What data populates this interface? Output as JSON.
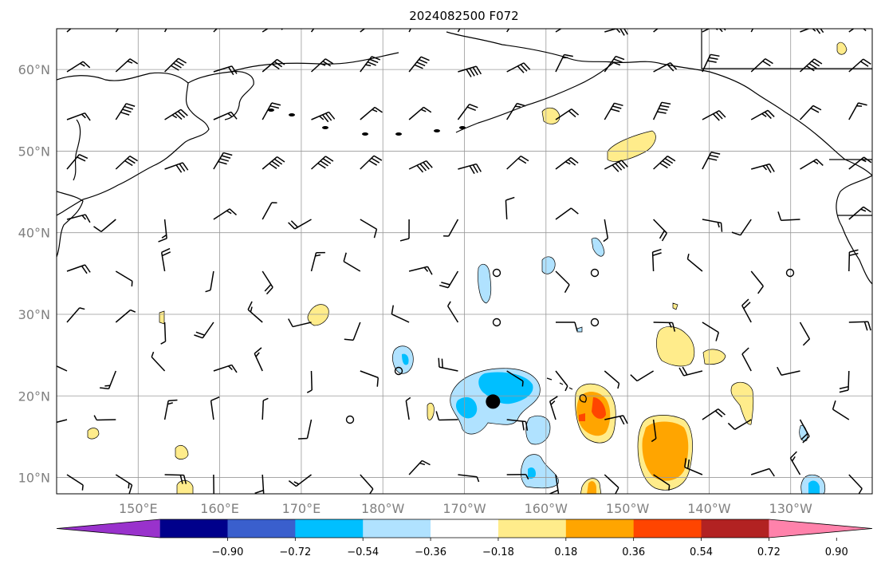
{
  "title": "2024082500 F072",
  "map": {
    "lat_labels": [
      "60°N",
      "50°N",
      "40°N",
      "30°N",
      "20°N",
      "10°N"
    ],
    "lat_values": [
      60,
      50,
      40,
      30,
      20,
      10
    ],
    "lon_labels": [
      "150°E",
      "160°E",
      "170°E",
      "180°W",
      "170°W",
      "160°W",
      "150°W",
      "140°W",
      "130°W"
    ],
    "lon_values": [
      150,
      160,
      170,
      180,
      190,
      200,
      210,
      220,
      230
    ],
    "lon_range_east": [
      140,
      240
    ],
    "lat_range": [
      8,
      65
    ],
    "grid": true,
    "marker": {
      "lon": 193.5,
      "lat": 19.3
    }
  },
  "colorbar": {
    "tick_labels": [
      "−0.90",
      "−0.72",
      "−0.54",
      "−0.36",
      "−0.18",
      "0.18",
      "0.36",
      "0.54",
      "0.72",
      "0.90"
    ],
    "colors": [
      "#9932cc",
      "#00008b",
      "#3a5fcd",
      "#00bfff",
      "#b0e2ff",
      "#ffffff",
      "#ffec8b",
      "#ffa500",
      "#ff4500",
      "#b22222",
      "#ff82ab"
    ]
  }
}
